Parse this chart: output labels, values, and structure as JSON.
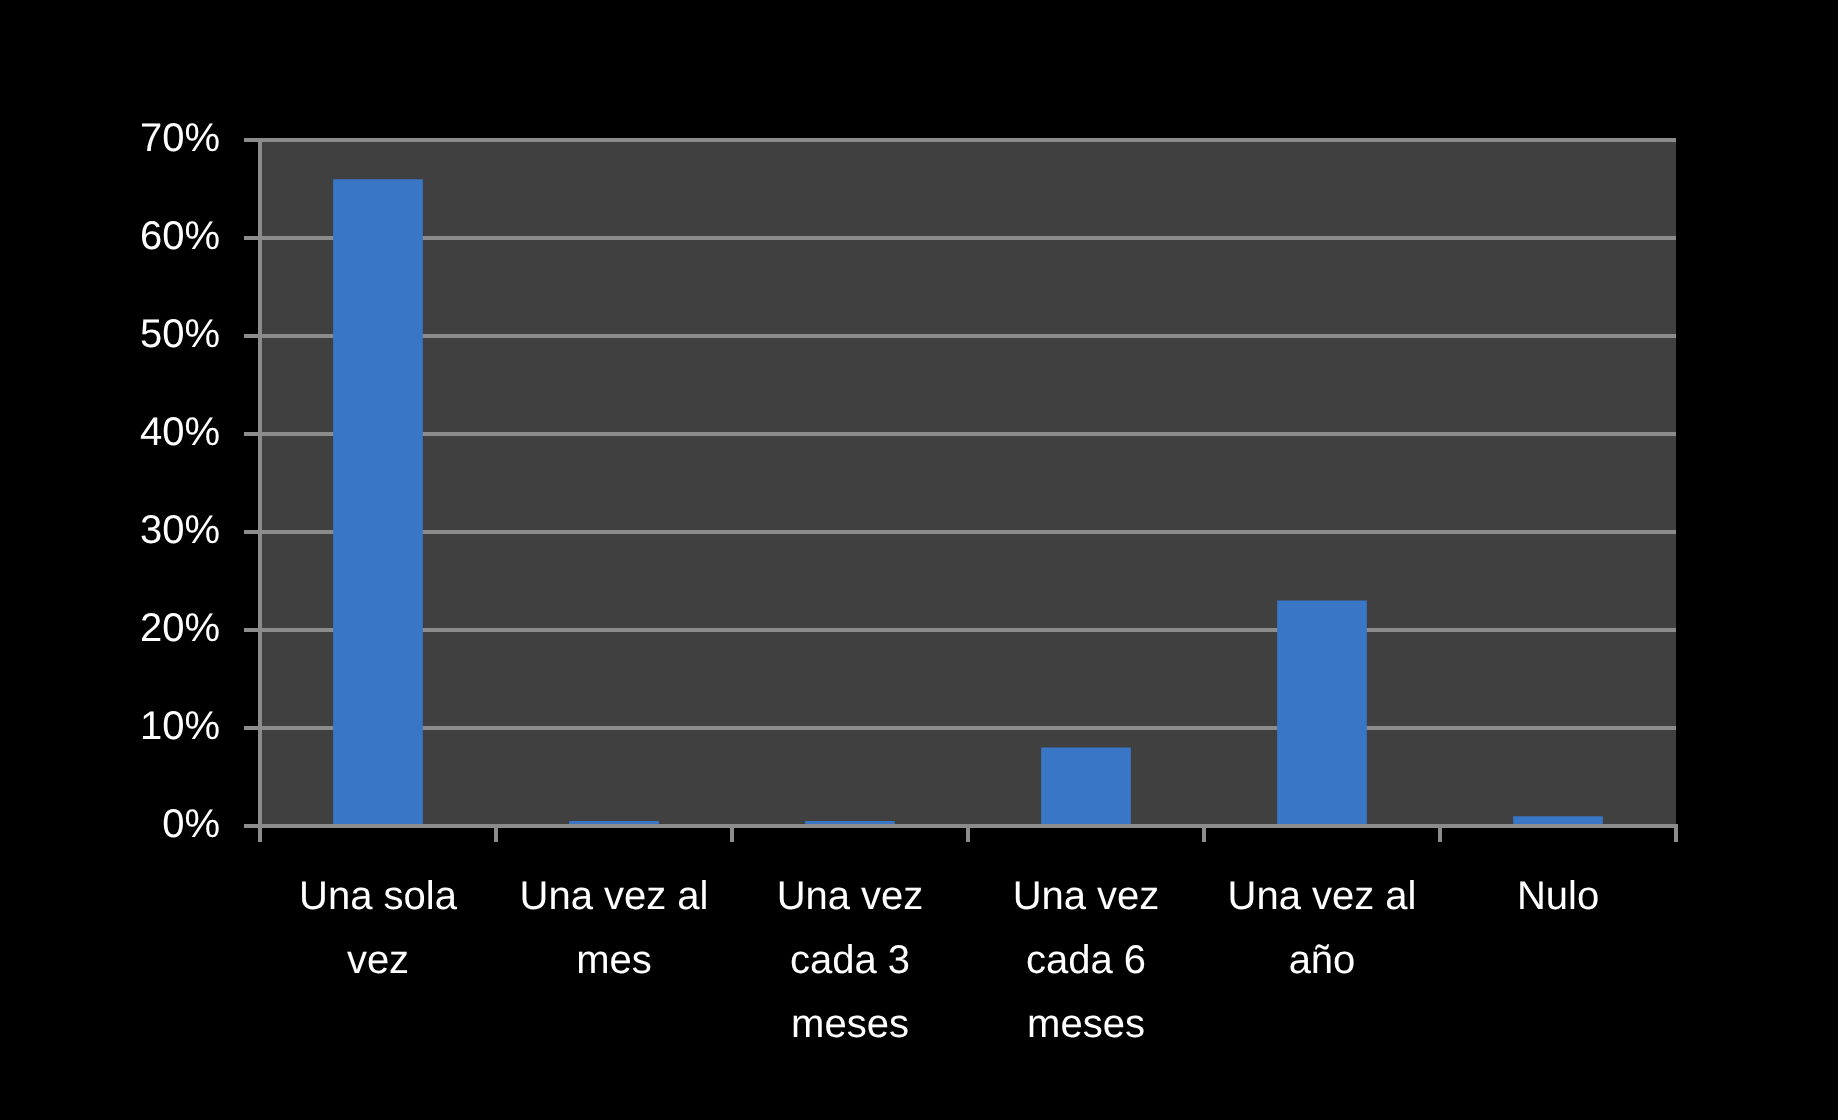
{
  "chart_data": {
    "type": "bar",
    "categories": [
      "Una sola vez",
      "Una vez al mes",
      "Una vez cada 3 meses",
      "Una vez cada 6 meses",
      "Una vez al año",
      "Nulo"
    ],
    "values": [
      66,
      0.5,
      0.5,
      8,
      23,
      1
    ],
    "color": "#3a76c6",
    "ylim": [
      0,
      70
    ],
    "yticks": [
      {
        "value": 0,
        "label": "0%"
      },
      {
        "value": 10,
        "label": "10%"
      },
      {
        "value": 20,
        "label": "20%"
      },
      {
        "value": 30,
        "label": "30%"
      },
      {
        "value": 40,
        "label": "40%"
      },
      {
        "value": 50,
        "label": "50%"
      },
      {
        "value": 60,
        "label": "60%"
      },
      {
        "value": 70,
        "label": "70%"
      }
    ],
    "grid": "y"
  }
}
